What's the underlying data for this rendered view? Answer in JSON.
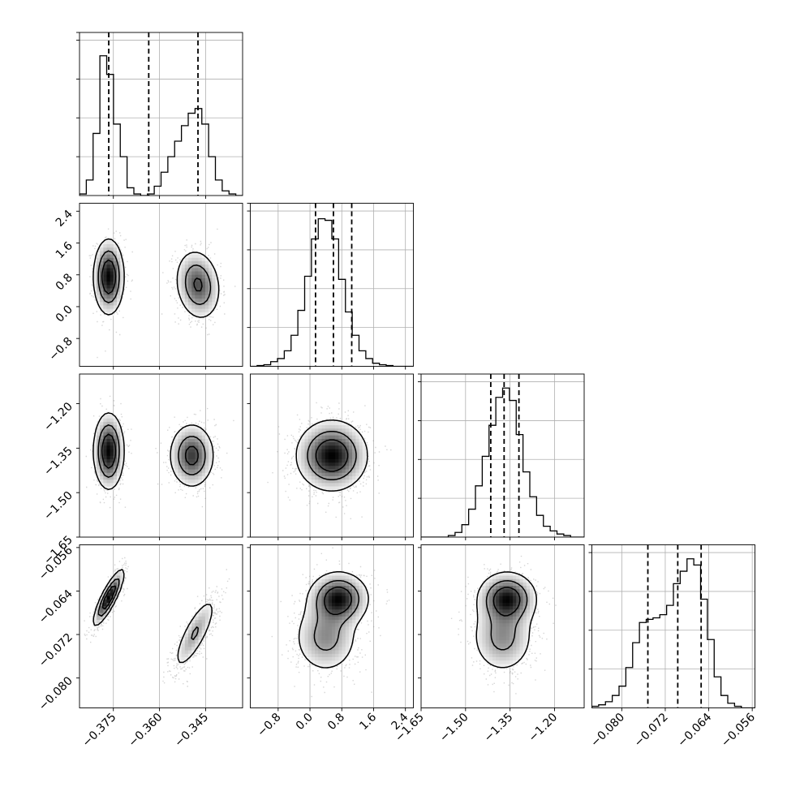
{
  "chart_data": {
    "type": "corner",
    "grid": true,
    "params": [
      {
        "range": [
          -0.386,
          -0.333
        ],
        "ticks": [
          -0.375,
          -0.36,
          -0.345
        ],
        "tick_labels": [
          "−0.375",
          "−0.360",
          "−0.345"
        ],
        "quantiles": [
          -0.3765,
          -0.3635,
          -0.3475
        ]
      },
      {
        "range": [
          -1.5,
          2.6
        ],
        "ticks": [
          -0.8,
          0.0,
          0.8,
          1.6,
          2.4
        ],
        "tick_labels": [
          "−0.8",
          "0.0",
          "0.8",
          "1.6",
          "2.4"
        ],
        "quantiles": [
          0.14,
          0.59,
          1.05
        ]
      },
      {
        "range": [
          -1.65,
          -1.1
        ],
        "ticks": [
          -1.65,
          -1.5,
          -1.35,
          -1.2
        ],
        "tick_labels": [
          "−1.65",
          "−1.50",
          "−1.35",
          "−1.20"
        ],
        "quantiles": [
          -1.415,
          -1.37,
          -1.32
        ]
      },
      {
        "range": [
          -0.0855,
          -0.0555
        ],
        "ticks": [
          -0.08,
          -0.072,
          -0.064,
          -0.056
        ],
        "tick_labels": [
          "−0.080",
          "−0.072",
          "−0.064",
          "−0.056"
        ],
        "quantiles": [
          -0.0752,
          -0.0697,
          -0.0654
        ]
      }
    ],
    "histograms": [
      {
        "param": 0,
        "counts": [
          0.01,
          0.1,
          0.4,
          0.9,
          0.78,
          0.46,
          0.25,
          0.05,
          0.01,
          0.0,
          0.01,
          0.06,
          0.15,
          0.25,
          0.35,
          0.45,
          0.53,
          0.56,
          0.46,
          0.25,
          0.1,
          0.03,
          0.01,
          0.0
        ],
        "ymax": 1.0
      },
      {
        "param": 1,
        "counts": [
          0.0,
          0.005,
          0.01,
          0.03,
          0.05,
          0.1,
          0.2,
          0.36,
          0.58,
          0.82,
          0.95,
          0.94,
          0.82,
          0.56,
          0.35,
          0.2,
          0.1,
          0.05,
          0.02,
          0.01,
          0.005,
          0.0,
          0.0,
          0.0
        ],
        "ymax": 1.0
      },
      {
        "param": 2,
        "counts": [
          0.0,
          0.0,
          0.0,
          0.0,
          0.01,
          0.03,
          0.08,
          0.18,
          0.33,
          0.52,
          0.72,
          0.9,
          0.96,
          0.88,
          0.66,
          0.42,
          0.26,
          0.14,
          0.07,
          0.04,
          0.02,
          0.01,
          0.0,
          0.0
        ],
        "ymax": 1.0
      },
      {
        "param": 3,
        "counts": [
          0.01,
          0.02,
          0.04,
          0.08,
          0.14,
          0.26,
          0.42,
          0.55,
          0.57,
          0.58,
          0.6,
          0.66,
          0.8,
          0.88,
          0.96,
          0.92,
          0.7,
          0.44,
          0.2,
          0.08,
          0.03,
          0.01,
          0.0,
          0.0
        ],
        "ymax": 1.0
      }
    ],
    "pairs": [
      {
        "x": 0,
        "y": 1,
        "modes": [
          {
            "mx": -0.3765,
            "my": 0.75,
            "sx": 0.0025,
            "sy": 0.48,
            "rho": 0.0,
            "w": 0.5
          },
          {
            "mx": -0.3475,
            "my": 0.55,
            "sx": 0.0037,
            "sy": 0.45,
            "rho": -0.15,
            "w": 0.5
          }
        ]
      },
      {
        "x": 0,
        "y": 2,
        "modes": [
          {
            "mx": -0.3765,
            "my": -1.36,
            "sx": 0.0025,
            "sy": 0.065,
            "rho": 0.0,
            "w": 0.5
          },
          {
            "mx": -0.3495,
            "my": -1.375,
            "sx": 0.0037,
            "sy": 0.055,
            "rho": 0.0,
            "w": 0.5
          }
        ]
      },
      {
        "x": 1,
        "y": 2,
        "modes": [
          {
            "mx": 0.55,
            "my": -1.375,
            "sx": 0.45,
            "sy": 0.06,
            "rho": 0.0,
            "w": 1.0
          }
        ]
      },
      {
        "x": 0,
        "y": 3,
        "modes": [
          {
            "mx": -0.3765,
            "my": -0.0652,
            "sx": 0.0025,
            "sy": 0.0026,
            "rho": 0.85,
            "w": 0.5
          },
          {
            "mx": -0.3485,
            "my": -0.0718,
            "sx": 0.0037,
            "sy": 0.0036,
            "rho": 0.8,
            "w": 0.5
          }
        ]
      },
      {
        "x": 1,
        "y": 3,
        "modes": [
          {
            "mx": 0.72,
            "my": -0.0654,
            "sx": 0.38,
            "sy": 0.0025,
            "rho": 0.0,
            "w": 0.55
          },
          {
            "mx": 0.4,
            "my": -0.0725,
            "sx": 0.42,
            "sy": 0.0035,
            "rho": 0.0,
            "w": 0.45
          }
        ]
      },
      {
        "x": 2,
        "y": 3,
        "modes": [
          {
            "mx": -1.36,
            "my": -0.0654,
            "sx": 0.05,
            "sy": 0.0025,
            "rho": 0.0,
            "w": 0.55
          },
          {
            "mx": -1.375,
            "my": -0.0725,
            "sx": 0.055,
            "sy": 0.0035,
            "rho": 0.0,
            "w": 0.45
          }
        ]
      }
    ]
  }
}
